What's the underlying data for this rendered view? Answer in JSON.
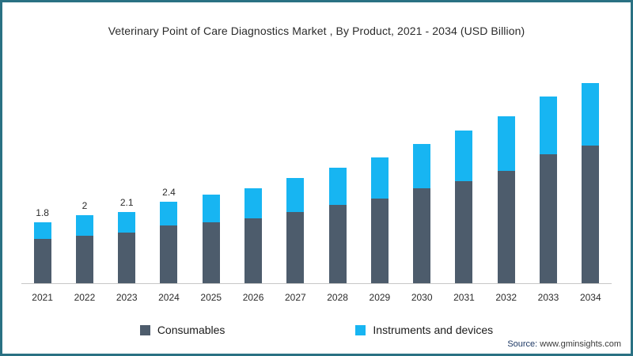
{
  "title": "Veterinary Point of Care Diagnostics Market , By Product, 2021 - 2034 (USD Billion)",
  "source": {
    "prefix": "Source:",
    "text": " www.gminsights.com"
  },
  "colors": {
    "consumables": "#4d5c6c",
    "instruments": "#17b5f2",
    "border": "#2a7183"
  },
  "legend": [
    {
      "label": "Consumables",
      "color": "#4d5c6c"
    },
    {
      "label": "Instruments and devices",
      "color": "#17b5f2"
    }
  ],
  "chart_data": {
    "type": "bar",
    "stacked": true,
    "title": "Veterinary Point of Care Diagnostics Market , By Product, 2021 - 2034 (USD Billion)",
    "xlabel": "",
    "ylabel": "USD Billion",
    "ylim": [
      0,
      6.5
    ],
    "grid": false,
    "legend_position": "bottom",
    "categories": [
      "2021",
      "2022",
      "2023",
      "2024",
      "2025",
      "2026",
      "2027",
      "2028",
      "2029",
      "2030",
      "2031",
      "2032",
      "2033",
      "2034"
    ],
    "series": [
      {
        "name": "Consumables",
        "color": "#4d5c6c",
        "values": [
          1.3,
          1.4,
          1.5,
          1.7,
          1.8,
          1.9,
          2.1,
          2.3,
          2.5,
          2.8,
          3.0,
          3.3,
          3.8,
          4.2
        ]
      },
      {
        "name": "Instruments and devices",
        "color": "#17b5f2",
        "values": [
          0.5,
          0.6,
          0.6,
          0.7,
          0.8,
          0.9,
          1.0,
          1.1,
          1.2,
          1.3,
          1.5,
          1.6,
          1.7,
          1.9
        ]
      }
    ],
    "totals": [
      1.8,
      2.0,
      2.1,
      2.4,
      2.6,
      2.8,
      3.1,
      3.4,
      3.7,
      4.1,
      4.5,
      4.9,
      5.5,
      6.1
    ],
    "bar_labels": [
      "1.8",
      "2",
      "2.1",
      "2.4",
      "",
      "",
      "",
      "",
      "",
      "",
      "",
      "",
      "",
      ""
    ]
  }
}
